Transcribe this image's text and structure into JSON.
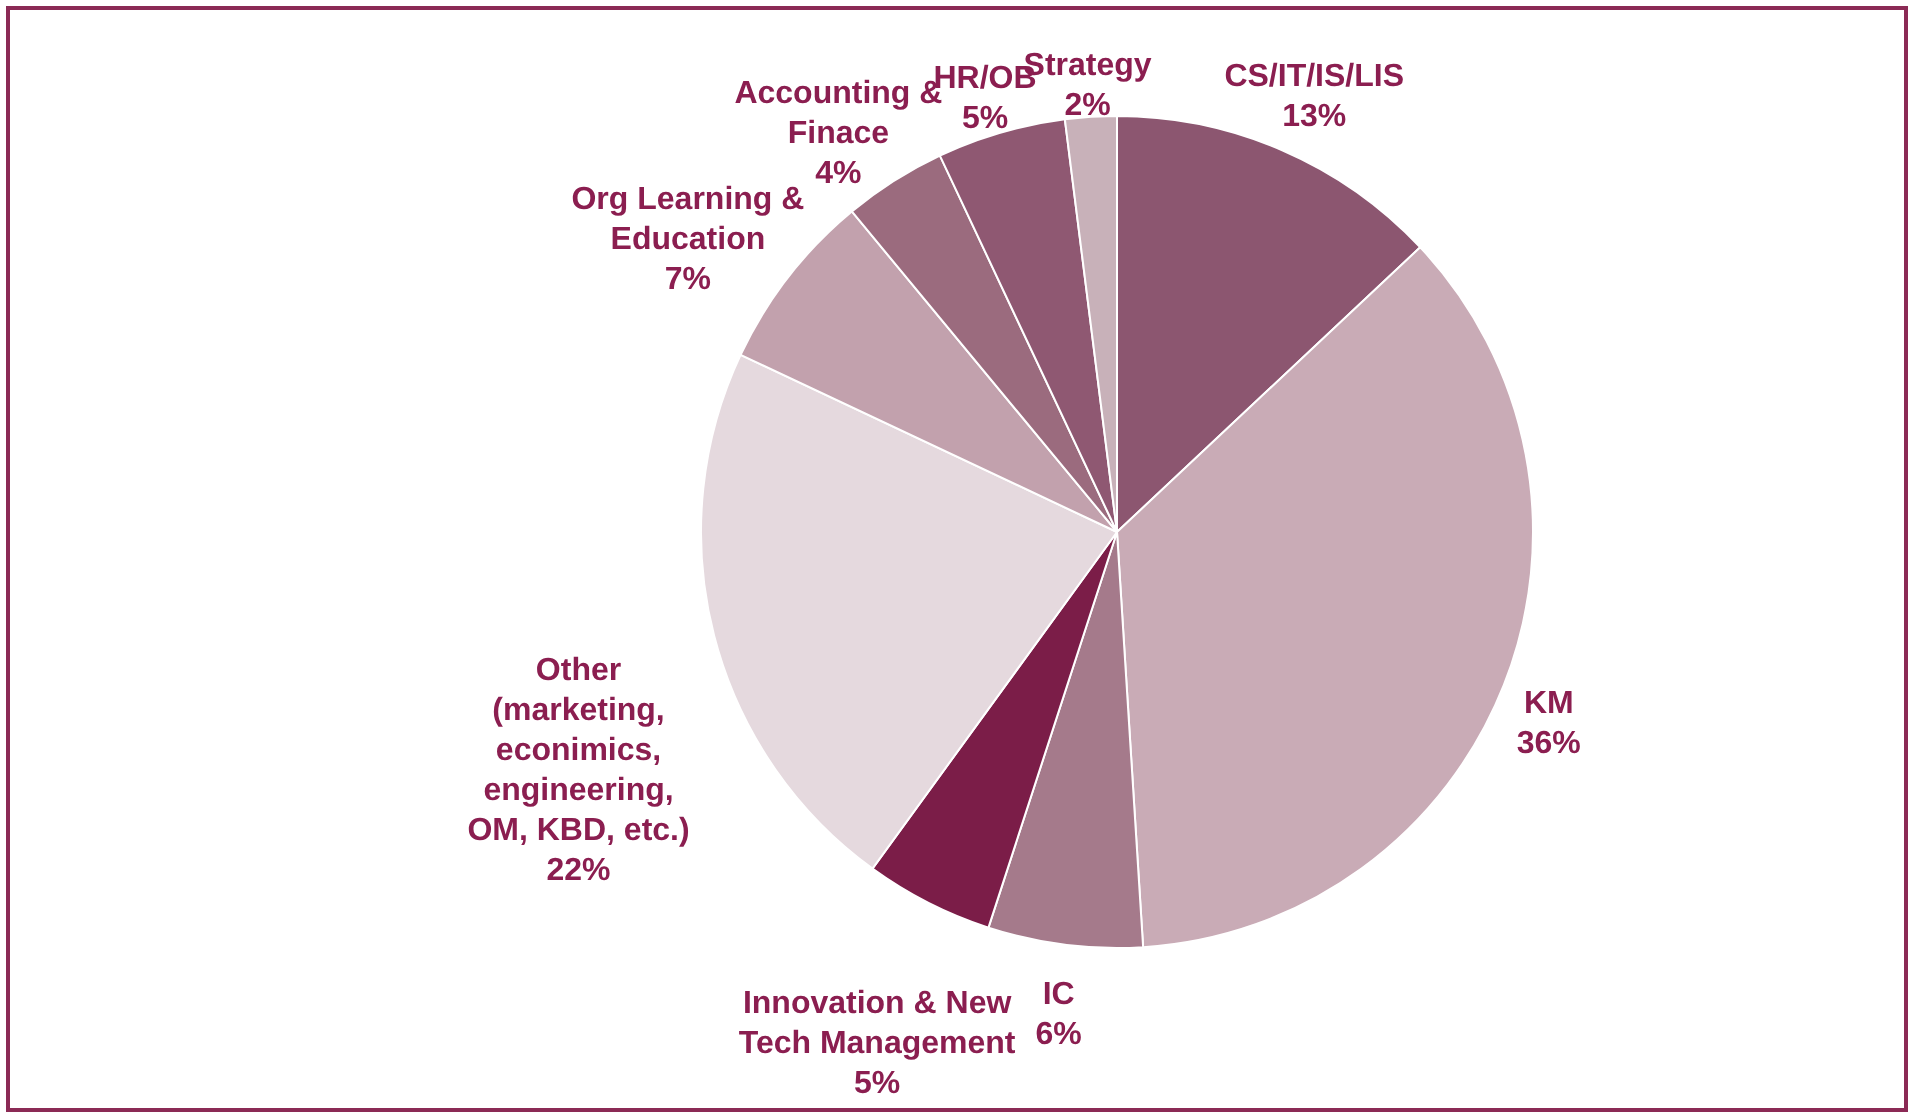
{
  "chart_data": {
    "type": "pie",
    "categories": [
      "CS/IT/IS/LIS",
      "KM",
      "IC",
      "Innovation & New Tech Management",
      "Other (marketing, econimics, engineering, OM, KBD, etc.)",
      "Org Learning & Education",
      "Accounting & Finace",
      "HR/OB",
      "Strategy"
    ],
    "values": [
      13,
      36,
      6,
      5,
      22,
      7,
      4,
      5,
      2
    ],
    "value_labels": [
      "13%",
      "36%",
      "6%",
      "5%",
      "22%",
      "7%",
      "4%",
      "5%",
      "2%"
    ],
    "colors": [
      "#8c5670",
      "#c9abb6",
      "#a57a8b",
      "#7b1d48",
      "#e5d9de",
      "#c2a1ad",
      "#9b6b7e",
      "#8f5872",
      "#c8b1b9"
    ]
  }
}
